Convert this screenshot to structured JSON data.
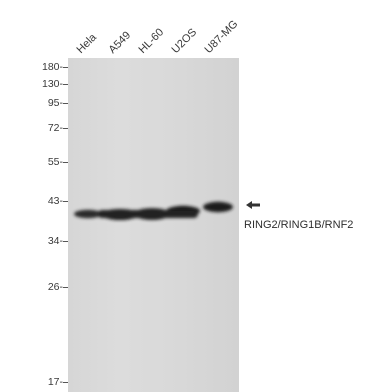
{
  "lanes": [
    "Hela",
    "A549",
    "HL-60",
    "U2OS",
    "U87-MG"
  ],
  "markers": [
    "180-",
    "130-",
    "95-",
    "72-",
    "55-",
    "43-",
    "34-",
    "26-",
    "17-"
  ],
  "target_label": "RING2/RING1B/RNF2",
  "icons": {
    "band_arrow": "arrow-left-icon"
  },
  "colors": {
    "membrane": "#d8d8d8",
    "band": "#1a1a1a",
    "text": "#333333"
  }
}
